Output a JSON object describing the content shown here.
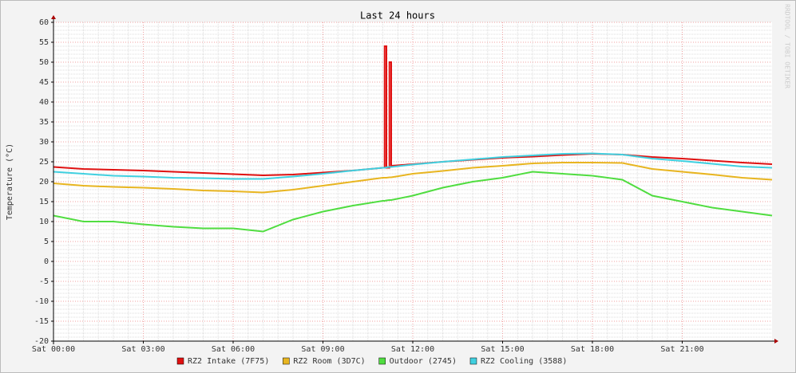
{
  "chart_data": {
    "type": "line",
    "title": "Last 24 hours",
    "y_label": "Temperature (°C)",
    "watermark": "RRDTOOL / TOBI OETIKER",
    "x": [
      0,
      1,
      2,
      3,
      4,
      5,
      6,
      7,
      8,
      9,
      10,
      11,
      11.06,
      11.06,
      11.12,
      11.12,
      11.22,
      11.22,
      11.28,
      11.28,
      12,
      13,
      14,
      15,
      16,
      17,
      18,
      19,
      20,
      21,
      22,
      23,
      24
    ],
    "xlim": [
      0,
      24
    ],
    "xticks": [
      {
        "value": 0,
        "label": "Sat 00:00"
      },
      {
        "value": 3,
        "label": "Sat 03:00"
      },
      {
        "value": 6,
        "label": "Sat 06:00"
      },
      {
        "value": 9,
        "label": "Sat 09:00"
      },
      {
        "value": 12,
        "label": "Sat 12:00"
      },
      {
        "value": 15,
        "label": "Sat 15:00"
      },
      {
        "value": 18,
        "label": "Sat 18:00"
      },
      {
        "value": 21,
        "label": "Sat 21:00"
      }
    ],
    "ylim": [
      -20,
      60
    ],
    "yticks": [
      -20,
      -15,
      -10,
      -5,
      0,
      5,
      10,
      15,
      20,
      25,
      30,
      35,
      40,
      45,
      50,
      55,
      60
    ],
    "grid": true,
    "series": [
      {
        "name": "RZ2 Intake (7F75)",
        "color": "#e01010",
        "values": [
          23.7,
          23.2,
          23,
          22.8,
          22.5,
          22.2,
          21.9,
          21.6,
          21.8,
          22.3,
          22.8,
          23.5,
          23.5,
          54,
          54,
          23.5,
          23.5,
          50,
          50,
          24,
          24.4,
          25,
          25.5,
          26,
          26.3,
          26.7,
          27,
          26.8,
          26.2,
          25.8,
          25.3,
          24.8,
          24.4
        ]
      },
      {
        "name": "RZ2 Room (3D7C)",
        "color": "#e8b520",
        "values": [
          19.6,
          19,
          18.7,
          18.5,
          18.2,
          17.8,
          17.6,
          17.3,
          18,
          19,
          20,
          21,
          21,
          21,
          21,
          21,
          21.1,
          21.1,
          21.1,
          21.1,
          22,
          22.7,
          23.5,
          24,
          24.6,
          24.8,
          24.8,
          24.7,
          23.2,
          22.5,
          21.8,
          21,
          20.5
        ]
      },
      {
        "name": "Outdoor (2745)",
        "color": "#50dd40",
        "values": [
          11.5,
          10,
          10,
          9.3,
          8.7,
          8.3,
          8.3,
          7.5,
          10.5,
          12.5,
          14,
          15.2,
          15.2,
          15.2,
          15.3,
          15.3,
          15.4,
          15.4,
          15.4,
          15.4,
          16.5,
          18.5,
          20,
          21,
          22.5,
          22,
          21.5,
          20.5,
          16.5,
          15,
          13.5,
          12.5,
          11.5
        ]
      },
      {
        "name": "RZ2 Cooling (3588)",
        "color": "#40d0e0",
        "values": [
          22.5,
          22,
          21.5,
          21.3,
          21,
          20.9,
          20.7,
          20.7,
          21.3,
          22,
          22.8,
          23.5,
          23.5,
          23.5,
          23.6,
          23.6,
          23.7,
          23.7,
          23.7,
          23.7,
          24.3,
          25,
          25.6,
          26.2,
          26.6,
          27,
          27.1,
          26.8,
          25.8,
          25.2,
          24.5,
          23.8,
          23.5
        ]
      }
    ]
  }
}
